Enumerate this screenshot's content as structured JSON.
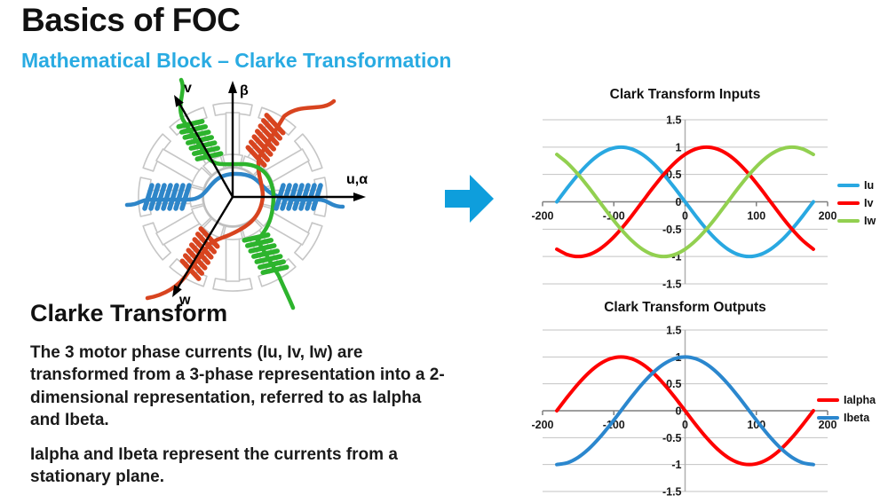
{
  "slide": {
    "title": "Basics of FOC",
    "subtitle": "Mathematical Block – Clarke Transformation",
    "accent_color": "#29ABE2",
    "section_heading": "Clarke Transform",
    "paragraphs": [
      "The 3 motor phase currents (Iu, Iv, Iw) are transformed from a 3-phase representation into a 2-dimensional representation, referred to as Ialpha and Ibeta.",
      "Ialpha and Ibeta represent the currents from a stationary plane."
    ]
  },
  "motor": {
    "axis_labels": {
      "beta": "β",
      "v": "v",
      "w": "w",
      "u_alpha": "u,α"
    },
    "phase_colors": {
      "u": "#2E86C9",
      "v": "#2DB42D",
      "w": "#D8441F"
    }
  },
  "arrow": {
    "color": "#0E9EDC"
  },
  "chart_data": [
    {
      "type": "line",
      "title": "Clark Transform Inputs",
      "xlabel": "",
      "ylabel": "",
      "xlim": [
        -200,
        200
      ],
      "ylim": [
        -1.5,
        1.5
      ],
      "x_ticks": [
        -200,
        -100,
        0,
        100,
        200
      ],
      "y_ticks": [
        1.5,
        1,
        0.5,
        0,
        -0.5,
        -1,
        -1.5
      ],
      "grid": true,
      "legend_position": "right",
      "x": [
        -180,
        -165,
        -150,
        -135,
        -120,
        -105,
        -90,
        -75,
        -60,
        -45,
        -30,
        -15,
        0,
        15,
        30,
        45,
        60,
        75,
        90,
        105,
        120,
        135,
        150,
        165,
        180
      ],
      "series": [
        {
          "name": "Iu",
          "color": "#29A8E1",
          "y": [
            0,
            0.259,
            0.5,
            0.707,
            0.866,
            0.966,
            1,
            0.966,
            0.866,
            0.707,
            0.5,
            0.259,
            0,
            -0.259,
            -0.5,
            -0.707,
            -0.866,
            -0.966,
            -1,
            -0.966,
            -0.866,
            -0.707,
            -0.5,
            -0.259,
            0
          ]
        },
        {
          "name": "Iv",
          "color": "#FE0000",
          "y": [
            -0.866,
            -0.966,
            -1,
            -0.966,
            -0.866,
            -0.707,
            -0.5,
            -0.259,
            0,
            0.259,
            0.5,
            0.707,
            0.866,
            0.966,
            1,
            0.966,
            0.866,
            0.707,
            0.5,
            0.259,
            0,
            -0.259,
            -0.5,
            -0.707,
            -0.866
          ]
        },
        {
          "name": "Iw",
          "color": "#92D050",
          "y": [
            0.866,
            0.707,
            0.5,
            0.259,
            0,
            -0.259,
            -0.5,
            -0.707,
            -0.866,
            -0.966,
            -1,
            -0.966,
            -0.866,
            -0.707,
            -0.5,
            -0.259,
            0,
            0.259,
            0.5,
            0.707,
            0.866,
            0.966,
            1,
            0.966,
            0.866
          ]
        }
      ]
    },
    {
      "type": "line",
      "title": "Clark Transform Outputs",
      "xlabel": "",
      "ylabel": "",
      "xlim": [
        -200,
        200
      ],
      "ylim": [
        -1.5,
        1.5
      ],
      "x_ticks": [
        -200,
        -100,
        0,
        100,
        200
      ],
      "y_ticks": [
        1.5,
        1,
        0.5,
        0,
        -0.5,
        -1,
        -1.5
      ],
      "grid": true,
      "legend_position": "right",
      "x": [
        -180,
        -165,
        -150,
        -135,
        -120,
        -105,
        -90,
        -75,
        -60,
        -45,
        -30,
        -15,
        0,
        15,
        30,
        45,
        60,
        75,
        90,
        105,
        120,
        135,
        150,
        165,
        180
      ],
      "series": [
        {
          "name": "Ialpha",
          "color": "#FE0000",
          "y": [
            0,
            0.259,
            0.5,
            0.707,
            0.866,
            0.966,
            1,
            0.966,
            0.866,
            0.707,
            0.5,
            0.259,
            0,
            -0.259,
            -0.5,
            -0.707,
            -0.866,
            -0.966,
            -1,
            -0.966,
            -0.866,
            -0.707,
            -0.5,
            -0.259,
            0
          ]
        },
        {
          "name": "Ibeta",
          "color": "#2B87CE",
          "y": [
            -1,
            -0.966,
            -0.866,
            -0.707,
            -0.5,
            -0.259,
            0,
            0.259,
            0.5,
            0.707,
            0.866,
            0.966,
            1,
            0.966,
            0.866,
            0.707,
            0.5,
            0.259,
            0,
            -0.259,
            -0.5,
            -0.707,
            -0.866,
            -0.966,
            -1
          ]
        }
      ]
    }
  ]
}
